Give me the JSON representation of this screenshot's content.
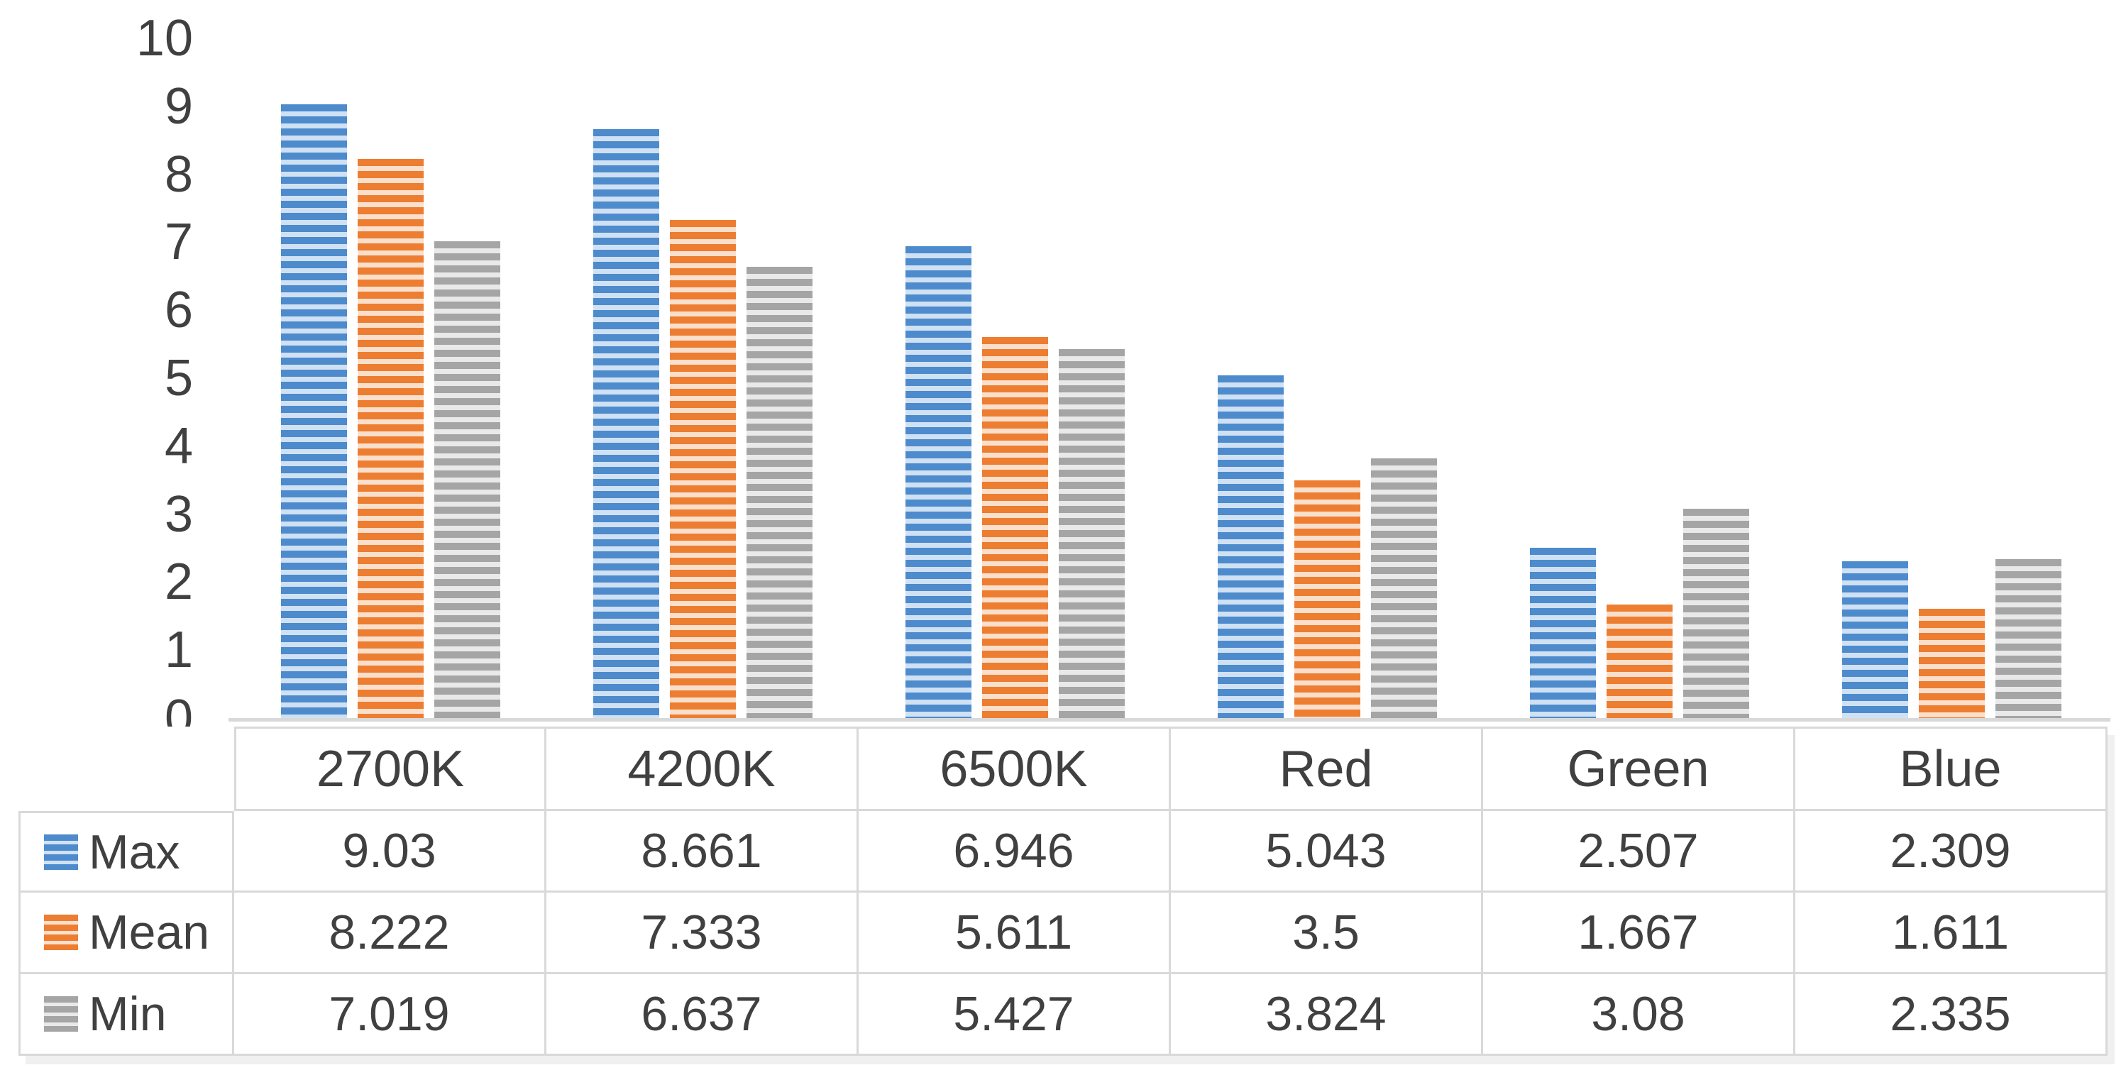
{
  "page": {
    "background": "#FFFFFF",
    "text_color": "#404040",
    "table_border_color": "#D9D9D9",
    "axis_line_color": "#D9D9D9"
  },
  "chart_data": {
    "type": "bar",
    "title": "",
    "xlabel": "",
    "ylabel": "",
    "categories": [
      "2700K",
      "4200K",
      "6500K",
      "Red",
      "Green",
      "Blue"
    ],
    "series": [
      {
        "name": "Max",
        "color": "#4D8BCC",
        "tint": "#D0E1F4",
        "values": [
          9.03,
          8.661,
          6.946,
          5.043,
          2.507,
          2.309
        ]
      },
      {
        "name": "Mean",
        "color": "#ED7D31",
        "tint": "#FAE0CC",
        "values": [
          8.222,
          7.333,
          5.611,
          3.5,
          1.667,
          1.611
        ]
      },
      {
        "name": "Min",
        "color": "#A5A5A5",
        "tint": "#E9E9E9",
        "values": [
          7.019,
          6.637,
          5.427,
          3.824,
          3.08,
          2.335
        ]
      }
    ],
    "ylim": [
      0,
      10
    ],
    "y_ticks": [
      0,
      1,
      2,
      3,
      4,
      5,
      6,
      7,
      8,
      9,
      10
    ],
    "grid": false,
    "bar_fill_pattern": "horizontal-stripes",
    "data_table": true,
    "legend_position": "data-table-row-headers"
  }
}
